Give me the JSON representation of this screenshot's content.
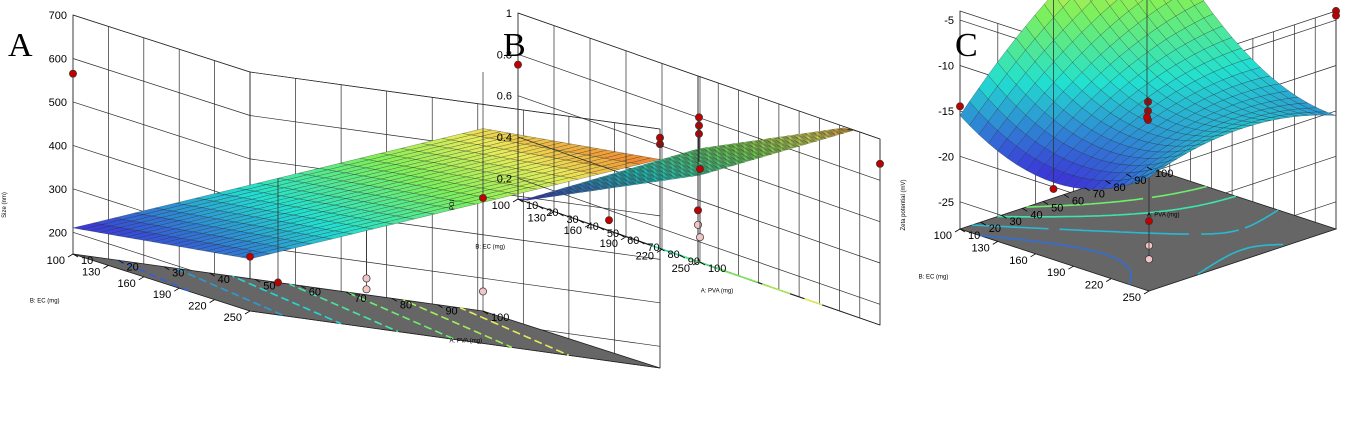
{
  "colors": {
    "background": "#ffffff",
    "floor": "#666666",
    "grid": "#2b2b2b",
    "surface_low": "#3c2fd8",
    "surface_mid": "#22e0d0",
    "surface_green": "#7ff05a",
    "surface_high": "#f07a2a",
    "point_above": "#c00000",
    "point_below": "#f2c6c6"
  },
  "chart_data": [
    {
      "panel": "A",
      "type": "surface3d",
      "zlabel": "Size (nm)",
      "xlabel": "A: PVA (mg)",
      "ylabel": "B: EC (mg)",
      "xticks": [
        "10",
        "20",
        "30",
        "40",
        "50",
        "60",
        "70",
        "80",
        "90",
        "100"
      ],
      "yticks": [
        "100",
        "130",
        "160",
        "190",
        "220",
        "250"
      ],
      "zticks": [
        "200",
        "300",
        "400",
        "500",
        "600",
        "700"
      ],
      "xlim": [
        10,
        100
      ],
      "ylim": [
        100,
        250
      ],
      "zlim": [
        150,
        700
      ],
      "surface_model": "linear",
      "surface_coefficients": {
        "intercept": 130,
        "a": 4.0,
        "b": 0.4
      },
      "contour_levels": [
        250,
        300,
        350,
        400,
        450,
        500,
        550
      ],
      "design_points": [
        {
          "x": 10,
          "y": 250,
          "z": 275,
          "above_surface": true
        },
        {
          "x": 10,
          "y": 100,
          "z": 565,
          "above_surface": true
        },
        {
          "x": 100,
          "y": 250,
          "z": 665,
          "above_surface": true
        },
        {
          "x": 100,
          "y": 250,
          "z": 680,
          "above_surface": true
        },
        {
          "x": 55,
          "y": 175,
          "z": 200,
          "above_surface": false
        },
        {
          "x": 55,
          "y": 175,
          "z": 225,
          "above_surface": false
        },
        {
          "x": 100,
          "y": 100,
          "z": 410,
          "above_surface": true
        },
        {
          "x": 100,
          "y": 100,
          "z": 195,
          "above_surface": false
        },
        {
          "x": 55,
          "y": 100,
          "z": 150,
          "above_surface": true
        },
        {
          "x": 100,
          "y": 100,
          "z": 455,
          "above_surface": false
        }
      ]
    },
    {
      "panel": "B",
      "type": "surface3d",
      "zlabel": "PDI",
      "xlabel": "A: PVA (mg)",
      "ylabel": "B: EC (mg)",
      "xticks": [
        "10",
        "20",
        "30",
        "40",
        "50",
        "60",
        "70",
        "80",
        "90",
        "100"
      ],
      "yticks": [
        "100",
        "130",
        "160",
        "190",
        "220",
        "250"
      ],
      "zticks": [
        "0.2",
        "0.4",
        "0.6",
        "0.8",
        "1"
      ],
      "xlim": [
        10,
        100
      ],
      "ylim": [
        100,
        250
      ],
      "zlim": [
        0.1,
        1.0
      ],
      "surface_model": "linear",
      "surface_coefficients": {
        "intercept": -0.333,
        "a": 0.0048,
        "b": 0.00373
      },
      "contour_levels": [
        0.5,
        0.6,
        0.7,
        0.8,
        0.9
      ],
      "design_points": [
        {
          "x": 10,
          "y": 250,
          "z": 0.6,
          "above_surface": false
        },
        {
          "x": 10,
          "y": 250,
          "z": 0.35,
          "above_surface": true
        },
        {
          "x": 10,
          "y": 250,
          "z": 0.28,
          "above_surface": false
        },
        {
          "x": 100,
          "y": 250,
          "z": 0.88,
          "above_surface": true
        },
        {
          "x": 55,
          "y": 175,
          "z": 0.72,
          "above_surface": true
        },
        {
          "x": 55,
          "y": 175,
          "z": 0.76,
          "above_surface": true
        },
        {
          "x": 55,
          "y": 175,
          "z": 0.8,
          "above_surface": true
        },
        {
          "x": 10,
          "y": 100,
          "z": 0.75,
          "above_surface": true
        },
        {
          "x": 100,
          "y": 100,
          "z": 0.55,
          "above_surface": true
        },
        {
          "x": 100,
          "y": 100,
          "z": 0.22,
          "above_surface": false
        },
        {
          "x": 55,
          "y": 100,
          "z": 0.15,
          "above_surface": true
        }
      ]
    },
    {
      "panel": "C",
      "type": "surface3d",
      "zlabel": "Zeta potential (mV)",
      "xlabel": "A: PVA (mg)",
      "ylabel": "B: EC (mg)",
      "xticks": [
        "10",
        "20",
        "30",
        "40",
        "50",
        "60",
        "70",
        "80",
        "90",
        "100"
      ],
      "yticks": [
        "100",
        "130",
        "160",
        "190",
        "220",
        "250"
      ],
      "zticks": [
        "-25",
        "-20",
        "-15",
        "-10",
        "-5"
      ],
      "xlim": [
        10,
        100
      ],
      "ylim": [
        100,
        250
      ],
      "zlim": [
        -28,
        -4
      ],
      "surface_model": "quadratic",
      "surface_coefficients": {
        "c": -13.5,
        "a": 4.0,
        "b": -4.0,
        "aa": -2.0,
        "bb": 4.0,
        "ab": -4.0
      },
      "contour_levels": [
        -20,
        -17,
        -14,
        -11,
        -8
      ],
      "design_points": [
        {
          "x": 10,
          "y": 250,
          "z": -20.3,
          "above_surface": true
        },
        {
          "x": 10,
          "y": 250,
          "z": -23.0,
          "above_surface": false
        },
        {
          "x": 10,
          "y": 250,
          "z": -24.5,
          "above_surface": false
        },
        {
          "x": 100,
          "y": 250,
          "z": -4.0,
          "above_surface": true
        },
        {
          "x": 100,
          "y": 250,
          "z": -4.5,
          "above_surface": true
        },
        {
          "x": 10,
          "y": 100,
          "z": -14.5,
          "above_surface": true
        },
        {
          "x": 55,
          "y": 175,
          "z": -14.0,
          "above_surface": true
        },
        {
          "x": 55,
          "y": 175,
          "z": -15.0,
          "above_surface": true
        },
        {
          "x": 55,
          "y": 175,
          "z": -16.0,
          "above_surface": true
        },
        {
          "x": 100,
          "y": 100,
          "z": -10.0,
          "above_surface": false
        },
        {
          "x": 100,
          "y": 100,
          "z": -22.5,
          "above_surface": true
        },
        {
          "x": 100,
          "y": 100,
          "z": -25.0,
          "above_surface": false
        },
        {
          "x": 55,
          "y": 100,
          "z": -27.0,
          "above_surface": true
        }
      ]
    }
  ]
}
